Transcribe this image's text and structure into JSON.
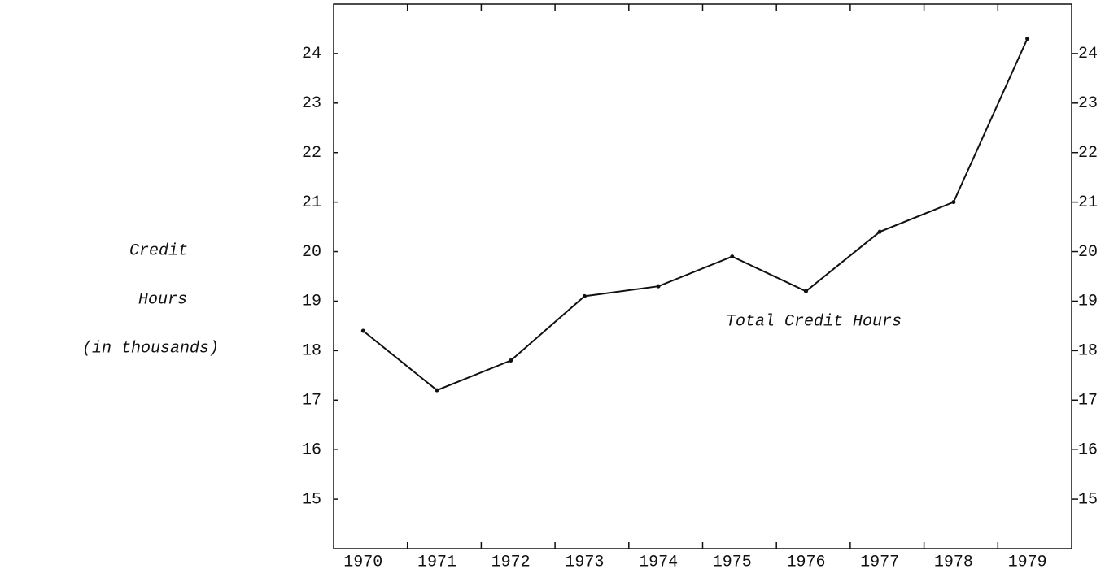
{
  "chart_data": {
    "type": "line",
    "ylabel": [
      "Credit",
      "Hours",
      "(in thousands)"
    ],
    "categories": [
      "1970",
      "1971",
      "1972",
      "1973",
      "1974",
      "1975",
      "1976",
      "1977",
      "1978",
      "1979"
    ],
    "series": [
      {
        "name": "Total Credit Hours",
        "color": "#111111",
        "values": [
          18.4,
          17.2,
          17.8,
          19.1,
          19.3,
          19.9,
          19.2,
          20.4,
          21.0,
          24.3
        ]
      }
    ],
    "ylim": [
      14,
      25
    ],
    "yticks": [
      15,
      16,
      17,
      18,
      19,
      20,
      21,
      22,
      23,
      24
    ],
    "y2ticks": [
      15,
      16,
      17,
      18,
      19,
      20,
      21,
      22,
      23,
      24
    ]
  }
}
